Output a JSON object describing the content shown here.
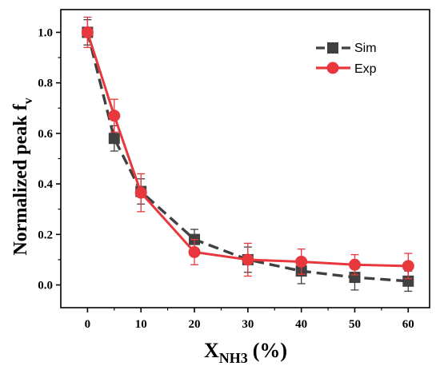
{
  "chart_data": {
    "type": "line",
    "x": [
      0,
      5,
      10,
      20,
      30,
      40,
      50,
      60
    ],
    "series": [
      {
        "name": "Sim",
        "values": [
          1.0,
          0.58,
          0.37,
          0.18,
          0.1,
          0.055,
          0.03,
          0.015
        ],
        "errors": [
          0.05,
          0.05,
          0.05,
          0.04,
          0.05,
          0.05,
          0.05,
          0.04
        ],
        "color": "#404040",
        "marker": "square",
        "line_style": "dashed"
      },
      {
        "name": "Exp",
        "values": [
          1.0,
          0.67,
          0.365,
          0.13,
          0.1,
          0.092,
          0.08,
          0.075
        ],
        "errors": [
          0.06,
          0.065,
          0.075,
          0.05,
          0.065,
          0.05,
          0.04,
          0.05
        ],
        "color": "#e8383d",
        "marker": "circle",
        "line_style": "solid"
      }
    ],
    "ylabel_main": "Normalized peak f",
    "ylabel_sub": "v",
    "xlabel_main": "X",
    "xlabel_sub": "NH3",
    "xlabel_unit": "(%)",
    "xticks": [
      0,
      10,
      20,
      30,
      40,
      50,
      60
    ],
    "xtick_labels": [
      "0",
      "10",
      "20",
      "30",
      "40",
      "50",
      "60"
    ],
    "yticks": [
      0.0,
      0.2,
      0.4,
      0.6,
      0.8,
      1.0
    ],
    "ytick_labels": [
      "0.0",
      "0.2",
      "0.4",
      "0.6",
      "0.8",
      "1.0"
    ],
    "xlim": [
      -5,
      64
    ],
    "ylim": [
      -0.09,
      1.09
    ],
    "grid": false,
    "legend_position": "top-right"
  }
}
